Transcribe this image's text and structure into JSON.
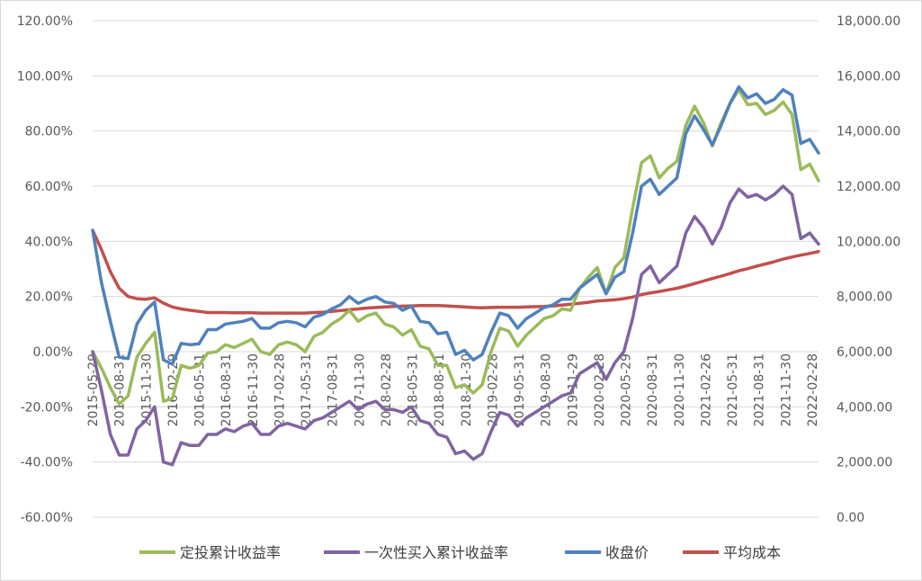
{
  "chart_data": {
    "type": "line",
    "title": "",
    "xlabel": "",
    "ylabel": "",
    "grid": true,
    "legend_position": "bottom",
    "left_axis": {
      "ylim": [
        -0.6,
        1.2
      ],
      "ticks": [
        1.2,
        1.0,
        0.8,
        0.6,
        0.4,
        0.2,
        0.0,
        -0.2,
        -0.4,
        -0.6
      ],
      "tick_labels": [
        "120.00%",
        "100.00%",
        "80.00%",
        "60.00%",
        "40.00%",
        "20.00%",
        "0.00%",
        "-20.00%",
        "-40.00%",
        "-60.00%"
      ]
    },
    "right_axis": {
      "ylim": [
        0,
        18000
      ],
      "ticks": [
        18000,
        16000,
        14000,
        12000,
        10000,
        8000,
        6000,
        4000,
        2000,
        0
      ],
      "tick_labels": [
        "18,000.00",
        "16,000.00",
        "14,000.00",
        "12,000.00",
        "10,000.00",
        "8,000.00",
        "6,000.00",
        "4,000.00",
        "2,000.00",
        "0.00"
      ]
    },
    "x_tick_labels": [
      "2015-05-29",
      "2015-08-31",
      "2015-11-30",
      "2016-02-29",
      "2016-05-31",
      "2016-08-31",
      "2016-11-30",
      "2017-02-28",
      "2017-05-31",
      "2017-08-31",
      "2017-11-30",
      "2018-02-28",
      "2018-05-31",
      "2018-08-31",
      "2018-11-30",
      "2019-02-28",
      "2019-05-31",
      "2019-08-30",
      "2019-11-29",
      "2020-02-28",
      "2020-05-29",
      "2020-08-31",
      "2020-11-30",
      "2021-02-26",
      "2021-05-31",
      "2021-08-31",
      "2021-11-30",
      "2022-02-28"
    ],
    "series": [
      {
        "name": "定投累计收益率",
        "axis": "left",
        "color": "#9bbb59",
        "values": [
          0.0,
          -0.06,
          -0.13,
          -0.19,
          -0.16,
          -0.02,
          0.03,
          0.07,
          -0.18,
          -0.17,
          -0.05,
          -0.06,
          -0.05,
          -0.005,
          0.0,
          0.025,
          0.015,
          0.03,
          0.045,
          0.0,
          -0.01,
          0.025,
          0.035,
          0.025,
          0.0,
          0.055,
          0.07,
          0.1,
          0.12,
          0.15,
          0.11,
          0.13,
          0.14,
          0.1,
          0.09,
          0.06,
          0.08,
          0.02,
          0.01,
          -0.05,
          -0.05,
          -0.13,
          -0.12,
          -0.15,
          -0.12,
          0.0,
          0.085,
          0.075,
          0.02,
          0.06,
          0.09,
          0.12,
          0.13,
          0.155,
          0.15,
          0.23,
          0.27,
          0.305,
          0.21,
          0.305,
          0.34,
          0.52,
          0.685,
          0.71,
          0.63,
          0.665,
          0.69,
          0.82,
          0.89,
          0.83,
          0.745,
          0.83,
          0.9,
          0.95,
          0.895,
          0.9,
          0.86,
          0.875,
          0.905,
          0.86,
          0.66,
          0.68,
          0.62
        ]
      },
      {
        "name": "一次性买入累计收益率",
        "axis": "left",
        "color": "#8064a2",
        "values": [
          0.0,
          -0.14,
          -0.3,
          -0.375,
          -0.375,
          -0.28,
          -0.25,
          -0.2,
          -0.4,
          -0.41,
          -0.33,
          -0.34,
          -0.34,
          -0.3,
          -0.3,
          -0.28,
          -0.29,
          -0.27,
          -0.26,
          -0.3,
          -0.3,
          -0.27,
          -0.26,
          -0.27,
          -0.28,
          -0.25,
          -0.24,
          -0.22,
          -0.2,
          -0.18,
          -0.21,
          -0.19,
          -0.18,
          -0.21,
          -0.21,
          -0.22,
          -0.2,
          -0.25,
          -0.26,
          -0.3,
          -0.31,
          -0.37,
          -0.36,
          -0.39,
          -0.37,
          -0.29,
          -0.22,
          -0.23,
          -0.27,
          -0.24,
          -0.22,
          -0.2,
          -0.18,
          -0.16,
          -0.15,
          -0.08,
          -0.06,
          -0.04,
          -0.1,
          -0.04,
          0.0,
          0.12,
          0.28,
          0.31,
          0.25,
          0.28,
          0.31,
          0.43,
          0.49,
          0.45,
          0.39,
          0.45,
          0.54,
          0.59,
          0.56,
          0.57,
          0.55,
          0.57,
          0.6,
          0.57,
          0.41,
          0.43,
          0.39
        ]
      },
      {
        "name": "收盘价",
        "axis": "right",
        "color": "#4f81bd",
        "values": [
          10400,
          8500,
          7100,
          5800,
          5750,
          7000,
          7500,
          7800,
          5700,
          5550,
          6300,
          6250,
          6280,
          6800,
          6800,
          7000,
          7050,
          7100,
          7200,
          6850,
          6850,
          7050,
          7100,
          7050,
          6900,
          7250,
          7350,
          7550,
          7700,
          8000,
          7750,
          7900,
          8000,
          7800,
          7750,
          7500,
          7650,
          7100,
          7050,
          6650,
          6700,
          5900,
          6050,
          5700,
          5900,
          6700,
          7400,
          7300,
          6850,
          7200,
          7400,
          7600,
          7700,
          7900,
          7900,
          8300,
          8550,
          8800,
          8100,
          8700,
          8900,
          10300,
          12000,
          12250,
          11700,
          12000,
          12300,
          13900,
          14550,
          14050,
          13500,
          14200,
          15000,
          15600,
          15200,
          15350,
          15000,
          15150,
          15500,
          15300,
          13550,
          13700,
          13200
        ]
      },
      {
        "name": "平均成本",
        "axis": "right",
        "color": "#c0504d",
        "values": [
          10400,
          9700,
          8900,
          8300,
          8000,
          7920,
          7900,
          7950,
          7760,
          7620,
          7550,
          7500,
          7460,
          7420,
          7420,
          7420,
          7410,
          7410,
          7410,
          7400,
          7400,
          7400,
          7400,
          7400,
          7400,
          7420,
          7430,
          7460,
          7490,
          7520,
          7550,
          7580,
          7600,
          7620,
          7640,
          7650,
          7660,
          7670,
          7670,
          7670,
          7660,
          7640,
          7620,
          7600,
          7590,
          7600,
          7610,
          7610,
          7610,
          7620,
          7630,
          7640,
          7660,
          7690,
          7720,
          7750,
          7790,
          7840,
          7860,
          7880,
          7920,
          7980,
          8070,
          8130,
          8180,
          8240,
          8300,
          8380,
          8470,
          8560,
          8650,
          8740,
          8830,
          8930,
          9010,
          9100,
          9180,
          9260,
          9360,
          9430,
          9500,
          9560,
          9630
        ]
      }
    ]
  }
}
